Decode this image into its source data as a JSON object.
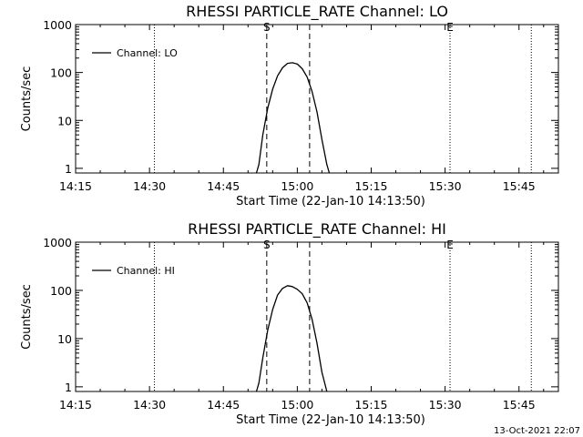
{
  "footer_timestamp": "13-Oct-2021 22:07",
  "chart_data": [
    {
      "type": "line",
      "title": "RHESSI PARTICLE_RATE Channel: LO",
      "xlabel": "Start Time (22-Jan-10 14:13:50)",
      "ylabel": "Counts/sec",
      "xlim": [
        "14:15",
        "15:53"
      ],
      "ylim": [
        0.8,
        1000
      ],
      "yscale": "log",
      "xticks": [
        "14:15",
        "14:30",
        "14:45",
        "15:00",
        "15:15",
        "15:30",
        "15:45"
      ],
      "yticks": [
        "1",
        "10",
        "100",
        "1000"
      ],
      "legend": {
        "label": "Channel: LO",
        "placement": "top-left"
      },
      "markers": [
        {
          "label": "S",
          "time": "14:53.8",
          "style": "dashed"
        },
        {
          "label": "",
          "time": "15:02.5",
          "style": "dashed"
        },
        {
          "label": "",
          "time": "14:31.0",
          "style": "dotted"
        },
        {
          "label": "E",
          "time": "15:31.0",
          "style": "dotted"
        },
        {
          "label": "",
          "time": "15:47.5",
          "style": "dotted"
        }
      ],
      "series": [
        {
          "name": "Channel: LO",
          "x": [
            "14:51.7",
            "14:52.2",
            "14:53",
            "14:54",
            "14:55",
            "14:56",
            "14:57",
            "14:58",
            "14:59",
            "15:00",
            "15:01",
            "15:02",
            "15:03",
            "15:04",
            "15:05",
            "15:06",
            "15:06.5"
          ],
          "y": [
            0.8,
            1.2,
            5,
            18,
            45,
            85,
            125,
            155,
            160,
            150,
            120,
            80,
            40,
            15,
            4,
            1.2,
            0.8
          ]
        }
      ]
    },
    {
      "type": "line",
      "title": "RHESSI PARTICLE_RATE Channel: HI",
      "xlabel": "Start Time (22-Jan-10 14:13:50)",
      "ylabel": "Counts/sec",
      "xlim": [
        "14:15",
        "15:53"
      ],
      "ylim": [
        0.8,
        1000
      ],
      "yscale": "log",
      "xticks": [
        "14:15",
        "14:30",
        "14:45",
        "15:00",
        "15:15",
        "15:30",
        "15:45"
      ],
      "yticks": [
        "1",
        "10",
        "100",
        "1000"
      ],
      "legend": {
        "label": "Channel: HI",
        "placement": "top-left"
      },
      "markers": [
        {
          "label": "S",
          "time": "14:53.8",
          "style": "dashed"
        },
        {
          "label": "",
          "time": "15:02.5",
          "style": "dashed"
        },
        {
          "label": "",
          "time": "14:31.0",
          "style": "dotted"
        },
        {
          "label": "E",
          "time": "15:31.0",
          "style": "dotted"
        },
        {
          "label": "",
          "time": "15:47.5",
          "style": "dotted"
        }
      ],
      "series": [
        {
          "name": "Channel: HI",
          "x": [
            "14:51.7",
            "14:52.2",
            "14:53",
            "14:54",
            "14:55",
            "14:56",
            "14:57",
            "14:58",
            "14:59",
            "15:00",
            "15:01",
            "15:02",
            "15:03",
            "15:04",
            "15:05",
            "15:06"
          ],
          "y": [
            0.8,
            1.2,
            4,
            15,
            40,
            80,
            110,
            125,
            120,
            105,
            85,
            55,
            25,
            8,
            2,
            0.8
          ]
        }
      ]
    }
  ]
}
